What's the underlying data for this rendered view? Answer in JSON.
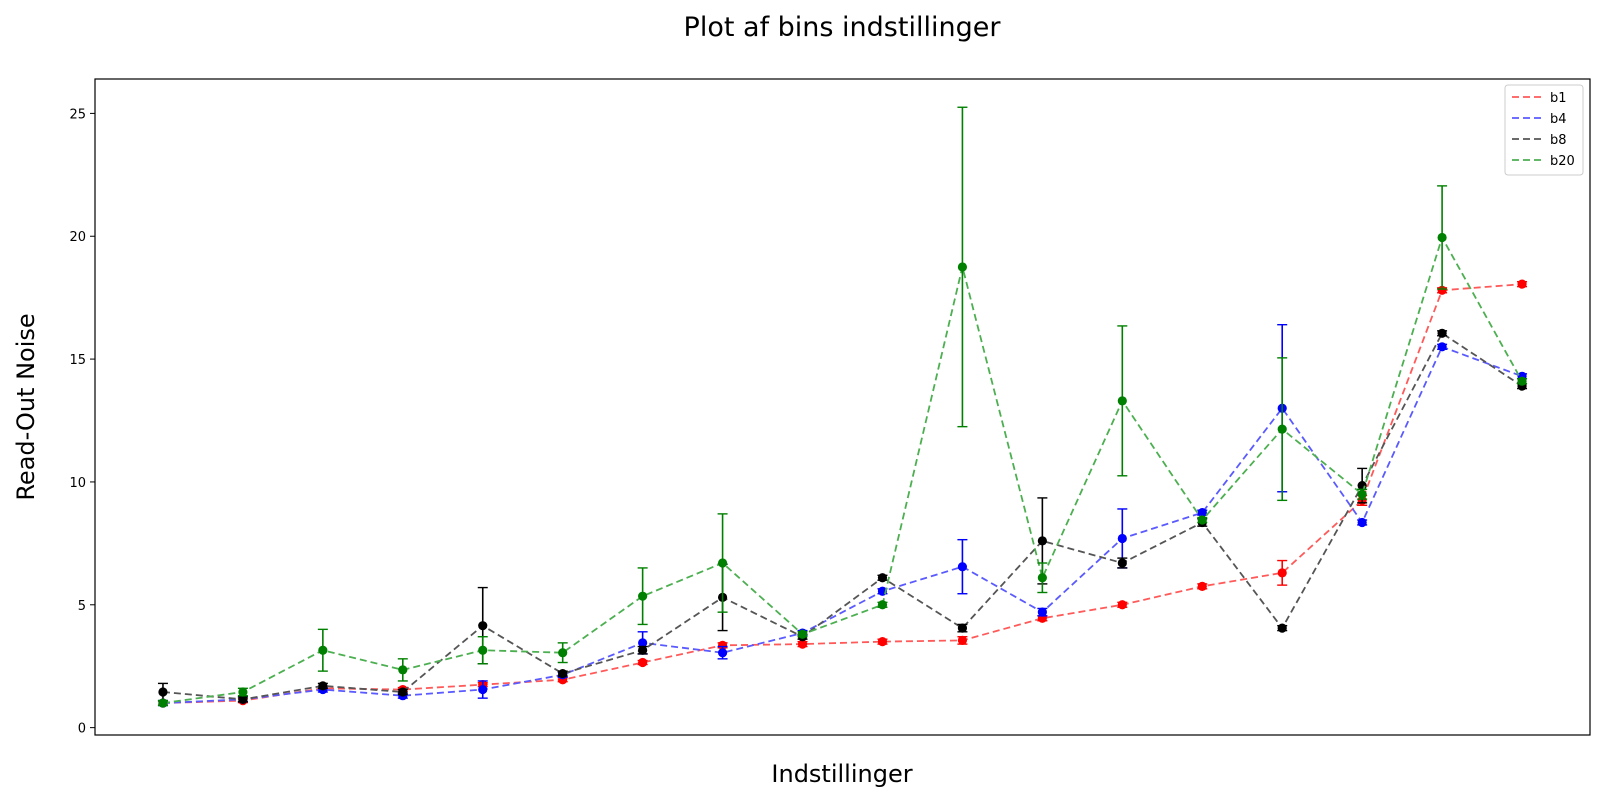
{
  "chart_data": {
    "type": "line",
    "title": "Plot af bins indstillinger",
    "xlabel": "Indstillinger",
    "ylabel": "Read-Out Noise",
    "x": [
      1,
      2,
      3,
      4,
      5,
      6,
      7,
      8,
      9,
      10,
      11,
      12,
      13,
      14,
      15,
      16,
      17,
      18
    ],
    "xlim": [
      0.15,
      18.85
    ],
    "ylim": [
      -0.3,
      26.4
    ],
    "yticks": [
      0,
      5,
      10,
      15,
      20,
      25
    ],
    "grid": false,
    "legend_position": "top-right",
    "series": [
      {
        "name": "b1",
        "line_color": "#ff5a5a",
        "marker_color": "#ff0000",
        "values": [
          1.0,
          1.1,
          1.6,
          1.55,
          1.75,
          1.95,
          2.65,
          3.35,
          3.4,
          3.5,
          3.55,
          4.45,
          5.0,
          5.75,
          6.3,
          9.25,
          17.8,
          18.05
        ],
        "errors": [
          0.08,
          0.08,
          0.08,
          0.08,
          0.08,
          0.08,
          0.08,
          0.1,
          0.1,
          0.1,
          0.15,
          0.1,
          0.1,
          0.1,
          0.5,
          0.2,
          0.1,
          0.1
        ]
      },
      {
        "name": "b4",
        "line_color": "#5a5aff",
        "marker_color": "#0000ff",
        "values": [
          1.0,
          1.15,
          1.55,
          1.3,
          1.55,
          2.15,
          3.45,
          3.05,
          3.85,
          5.55,
          6.55,
          4.7,
          7.7,
          8.75,
          13.0,
          8.35,
          15.5,
          14.3
        ],
        "errors": [
          0.1,
          0.1,
          0.1,
          0.1,
          0.35,
          0.1,
          0.45,
          0.25,
          0.1,
          0.1,
          1.1,
          0.15,
          1.2,
          0.1,
          3.4,
          0.1,
          0.1,
          0.1
        ]
      },
      {
        "name": "b8",
        "line_color": "#555555",
        "marker_color": "#000000",
        "values": [
          1.45,
          1.15,
          1.7,
          1.45,
          4.15,
          2.2,
          3.15,
          5.3,
          3.7,
          6.1,
          4.05,
          7.6,
          6.7,
          8.35,
          4.05,
          9.85,
          16.05,
          13.9
        ],
        "errors": [
          0.35,
          0.1,
          0.1,
          0.1,
          1.55,
          0.1,
          0.15,
          1.35,
          0.1,
          0.1,
          0.15,
          1.75,
          0.2,
          0.15,
          0.1,
          0.7,
          0.1,
          0.1
        ]
      },
      {
        "name": "b20",
        "line_color": "#4caf50",
        "marker_color": "#008000",
        "values": [
          1.0,
          1.45,
          3.15,
          2.35,
          3.15,
          3.05,
          5.35,
          6.7,
          3.8,
          5.0,
          18.75,
          6.1,
          13.3,
          8.45,
          12.15,
          9.5,
          19.95,
          14.1
        ],
        "errors": [
          0.1,
          0.15,
          0.85,
          0.45,
          0.55,
          0.4,
          1.15,
          2.0,
          0.1,
          0.1,
          6.5,
          0.6,
          3.05,
          0.1,
          2.9,
          0.2,
          2.1,
          0.1
        ]
      }
    ]
  }
}
